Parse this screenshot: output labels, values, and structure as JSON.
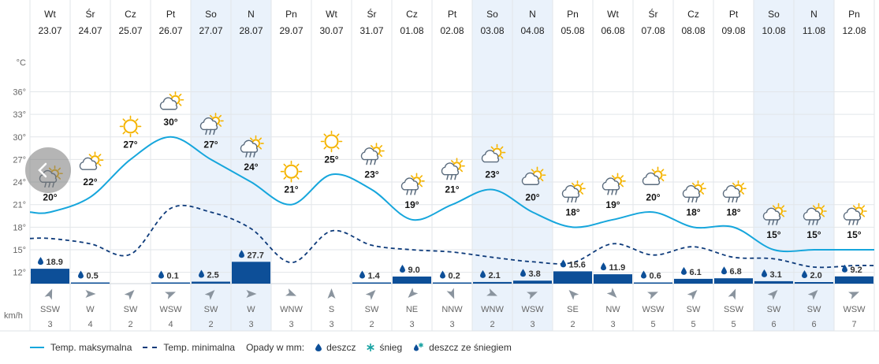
{
  "days": [
    {
      "day": "Wt",
      "date": "23.07",
      "weekend": false
    },
    {
      "day": "Śr",
      "date": "24.07",
      "weekend": false
    },
    {
      "day": "Cz",
      "date": "25.07",
      "weekend": false
    },
    {
      "day": "Pt",
      "date": "26.07",
      "weekend": false
    },
    {
      "day": "So",
      "date": "27.07",
      "weekend": true
    },
    {
      "day": "N",
      "date": "28.07",
      "weekend": true
    },
    {
      "day": "Pn",
      "date": "29.07",
      "weekend": false
    },
    {
      "day": "Wt",
      "date": "30.07",
      "weekend": false
    },
    {
      "day": "Śr",
      "date": "31.07",
      "weekend": false
    },
    {
      "day": "Cz",
      "date": "01.08",
      "weekend": false
    },
    {
      "day": "Pt",
      "date": "02.08",
      "weekend": false
    },
    {
      "day": "So",
      "date": "03.08",
      "weekend": true
    },
    {
      "day": "N",
      "date": "04.08",
      "weekend": true
    },
    {
      "day": "Pn",
      "date": "05.08",
      "weekend": false
    },
    {
      "day": "Wt",
      "date": "06.08",
      "weekend": false
    },
    {
      "day": "Śr",
      "date": "07.08",
      "weekend": false
    },
    {
      "day": "Cz",
      "date": "08.08",
      "weekend": false
    },
    {
      "day": "Pt",
      "date": "09.08",
      "weekend": false
    },
    {
      "day": "So",
      "date": "10.08",
      "weekend": true
    },
    {
      "day": "N",
      "date": "11.08",
      "weekend": true
    },
    {
      "day": "Pn",
      "date": "12.08",
      "weekend": false
    }
  ],
  "chart_data": {
    "type": "line",
    "ylabel": "°C",
    "yticks": [
      12,
      15,
      18,
      21,
      24,
      27,
      30,
      33,
      36
    ],
    "ylim": [
      9.5,
      38.5
    ],
    "series": [
      {
        "name": "Temp. maksymalna",
        "values": [
          20,
          22,
          27,
          30,
          27,
          24,
          21,
          25,
          23,
          19,
          21,
          23,
          20,
          18,
          19,
          20,
          18,
          18,
          15,
          15,
          15
        ],
        "labels": [
          "20°",
          "22°",
          "27°",
          "30°",
          "27°",
          "24°",
          "21°",
          "25°",
          "23°",
          "19°",
          "21°",
          "23°",
          "20°",
          "18°",
          "19°",
          "20°",
          "18°",
          "18°",
          "15°",
          "15°",
          "15°"
        ]
      },
      {
        "name": "Temp. minimalna",
        "values": [
          16.5,
          15.8,
          14.4,
          20.5,
          20,
          17.8,
          13.3,
          17.5,
          15.6,
          15,
          14.7,
          14,
          13.4,
          13.3,
          15.8,
          14.3,
          15.4,
          14,
          13.8,
          12.7,
          12.9
        ]
      }
    ],
    "precipitation": {
      "unit": "mm",
      "values": [
        18.9,
        0.5,
        0,
        0.1,
        2.5,
        27.7,
        0,
        0,
        1.4,
        9.0,
        0.2,
        2.1,
        3.8,
        15.6,
        11.9,
        0.6,
        6.1,
        6.8,
        3.1,
        2.0,
        9.2
      ],
      "labels": [
        "18.9",
        "0.5",
        "",
        "0.1",
        "2.5",
        "27.7",
        "",
        "",
        "1.4",
        "9.0",
        "0.2",
        "2.1",
        "3.8",
        "15.6",
        "11.9",
        "0.6",
        "6.1",
        "6.8",
        "3.1",
        "2.0",
        "9.2"
      ]
    },
    "icons": [
      "rain-sun",
      "partly-cloudy",
      "sunny",
      "partly-cloudy",
      "rain-sun",
      "rain-sun",
      "sunny",
      "sunny",
      "rain-sun",
      "rain-sun",
      "rain-sun",
      "partly-cloudy",
      "partly-cloudy",
      "rain-sun",
      "rain-sun",
      "partly-cloudy",
      "rain-sun",
      "rain-sun",
      "rain-sun",
      "rain-sun",
      "sleet-sun"
    ],
    "wind": {
      "unit": "km/h",
      "directions": [
        "SSW",
        "W",
        "SW",
        "WSW",
        "SW",
        "W",
        "WNW",
        "S",
        "SW",
        "NE",
        "NNW",
        "WNW",
        "WSW",
        "SE",
        "NW",
        "WSW",
        "SW",
        "SSW",
        "SW",
        "SW",
        "WSW"
      ],
      "speeds": [
        "3",
        "4",
        "2",
        "4",
        "2",
        "3",
        "3",
        "3",
        "2",
        "3",
        "3",
        "2",
        "3",
        "2",
        "3",
        "5",
        "5",
        "5",
        "6",
        "6",
        "7"
      ]
    }
  },
  "legend": {
    "max_label": "Temp. maksymalna",
    "min_label": "Temp. minimalna",
    "precip_title": "Opady w mm:",
    "rain_label": "deszcz",
    "snow_label": "śnieg",
    "mixed_label": "deszcz ze śniegiem"
  },
  "colors": {
    "max_line": "#16a6dc",
    "min_line": "#0d3a7a",
    "bar": "#0d4f98",
    "weekend": "#eaf2fb",
    "sun": "#f5b400"
  }
}
